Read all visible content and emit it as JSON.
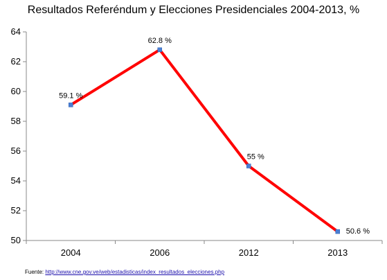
{
  "chart_data": {
    "type": "line",
    "title": "Resultados Referéndum y Elecciones Presidenciales  2004-2013, %",
    "categories": [
      "2004",
      "2006",
      "2012",
      "2013"
    ],
    "series": [
      {
        "values": [
          59.1,
          62.8,
          55.0,
          50.6
        ],
        "color": "#ff0000",
        "marker_color": "#4a7fd4"
      }
    ],
    "data_labels": [
      "59.1 %",
      "62.8 %",
      "55 %",
      "50.6 %"
    ],
    "ylim": [
      50,
      64
    ],
    "yticks": [
      50,
      52,
      54,
      56,
      58,
      60,
      62,
      64
    ],
    "xlabel": "",
    "ylabel": "",
    "grid": false,
    "legend": "none"
  },
  "source": {
    "prefix": "Fuente: ",
    "link": "http://www.cne.gov.ve/web/estadisticas/index_resultados_elecciones.php"
  }
}
